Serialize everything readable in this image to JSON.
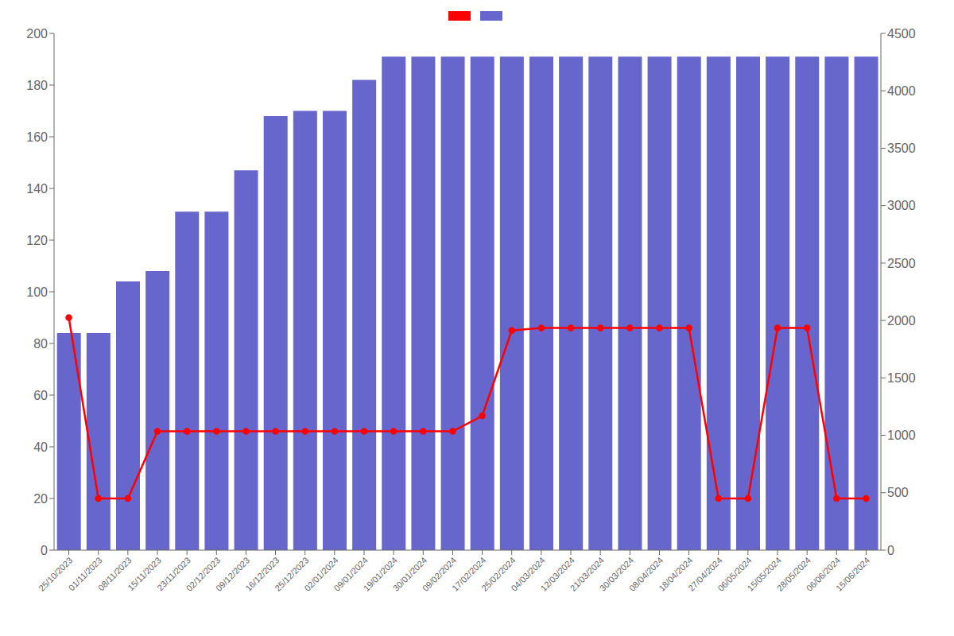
{
  "chart_data": {
    "type": "bar",
    "categories": [
      "25/10/2023",
      "01/11/2023",
      "08/11/2023",
      "15/11/2023",
      "23/11/2023",
      "02/12/2023",
      "09/12/2023",
      "16/12/2023",
      "25/12/2023",
      "02/01/2024",
      "09/01/2024",
      "19/01/2024",
      "30/01/2024",
      "09/02/2024",
      "17/02/2024",
      "25/02/2024",
      "04/03/2024",
      "12/03/2024",
      "21/03/2024",
      "30/03/2024",
      "08/04/2024",
      "18/04/2024",
      "27/04/2024",
      "06/05/2024",
      "15/05/2024",
      "28/05/2024",
      "06/06/2024",
      "15/06/2024"
    ],
    "series": [
      {
        "type": "line",
        "color": "#ff0000",
        "marker": "circle",
        "values": [
          90,
          20,
          20,
          46,
          46,
          46,
          46,
          46,
          46,
          46,
          46,
          46,
          46,
          46,
          52,
          85,
          86,
          86,
          86,
          86,
          86,
          86,
          20,
          20,
          86,
          86,
          20,
          20
        ]
      },
      {
        "type": "bar",
        "color": "#6666cc",
        "values": [
          84,
          84,
          104,
          108,
          131,
          131,
          147,
          168,
          170,
          170,
          182,
          191,
          191,
          191,
          191,
          191,
          191,
          191,
          191,
          191,
          191,
          191,
          191,
          191,
          191,
          191,
          191,
          191
        ]
      }
    ],
    "ylim": [
      0,
      200
    ],
    "yticks": [
      0,
      20,
      40,
      60,
      80,
      100,
      120,
      140,
      160,
      180,
      200
    ],
    "y2lim": [
      0,
      4500
    ],
    "y2ticks": [
      0,
      500,
      1000,
      1500,
      2000,
      2500,
      3000,
      3500,
      4000,
      4500
    ],
    "grid": false,
    "legend": "top"
  }
}
